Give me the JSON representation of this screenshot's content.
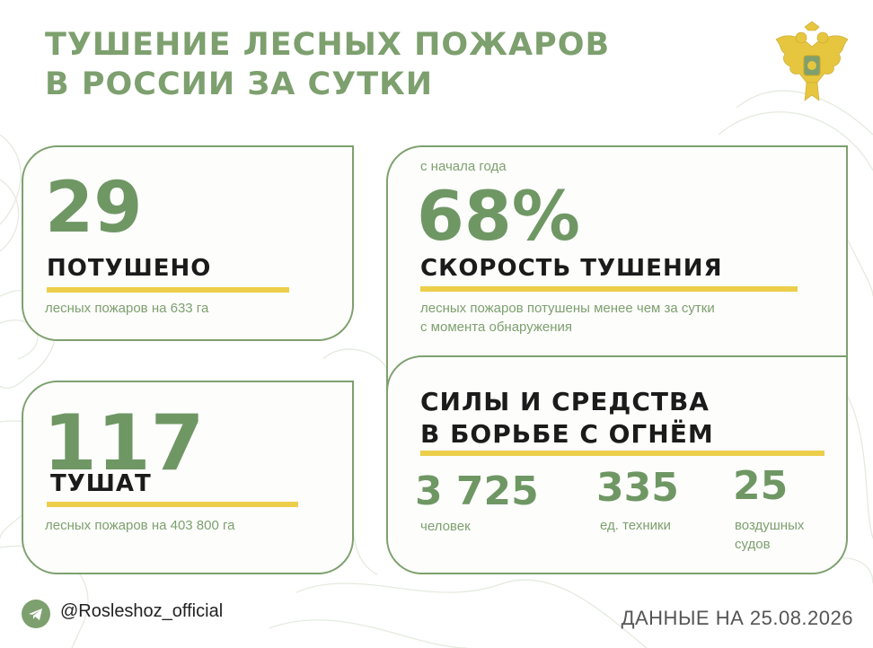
{
  "title": {
    "line1": "ТУШЕНИЕ ЛЕСНЫХ ПОЖАРОВ",
    "line2": "В РОССИИ ЗА СУТКИ"
  },
  "extinguished": {
    "number": "29",
    "label": "ПОТУШЕНО",
    "note": "лесных пожаров на 633 га"
  },
  "burning": {
    "number": "117",
    "label": "ТУШАТ",
    "note": "лесных пожаров на 403 800 га"
  },
  "speed": {
    "kicker": "с начала года",
    "number": "68%",
    "label": "СКОРОСТЬ ТУШЕНИЯ",
    "note_line1": "лесных пожаров потушены менее чем за сутки",
    "note_line2": "с момента обнаружения"
  },
  "forces": {
    "title_line1": "СИЛЫ И СРЕДСТВА",
    "title_line2": "В БОРЬБЕ С ОГНЁМ",
    "stats": [
      {
        "value": "3 725",
        "label_line1": "человек",
        "label_line2": ""
      },
      {
        "value": "335",
        "label_line1": "ед. техники",
        "label_line2": ""
      },
      {
        "value": "25",
        "label_line1": "воздушных",
        "label_line2": "судов"
      }
    ]
  },
  "footer": {
    "handle": "@Rosleshoz_official",
    "date": "ДАННЫЕ НА 25.08.2026"
  },
  "icons": {
    "emblem": "double-headed-eagle-emblem-icon",
    "telegram": "telegram-icon"
  },
  "colors": {
    "green": "#7da06e",
    "yellow": "#ecce4b",
    "dark": "#1b1b1b"
  }
}
